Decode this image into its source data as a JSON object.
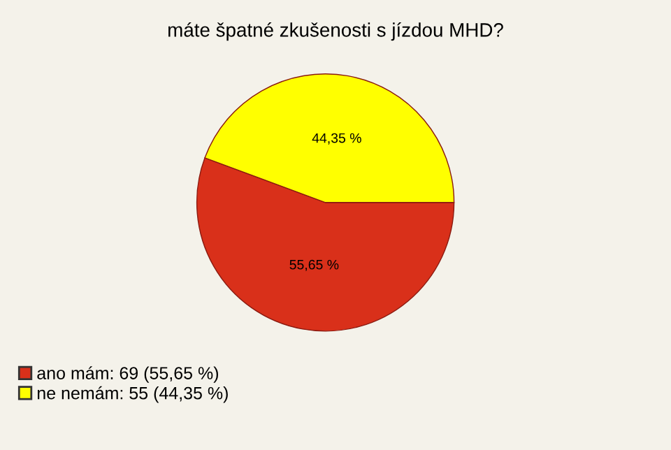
{
  "chart_data": {
    "type": "pie",
    "title": "máte špatné zkušenosti s jízdou MHD?",
    "categories": [
      "ano mám: 69 (55,65 %)",
      "ne nemám: 55 (44,35 %)"
    ],
    "values": [
      55.65,
      44.35
    ],
    "colors": [
      "#d9301a",
      "#ffff00"
    ],
    "value_labels": [
      "55,65 %",
      "44,35 %"
    ],
    "legend": "bottom left"
  }
}
